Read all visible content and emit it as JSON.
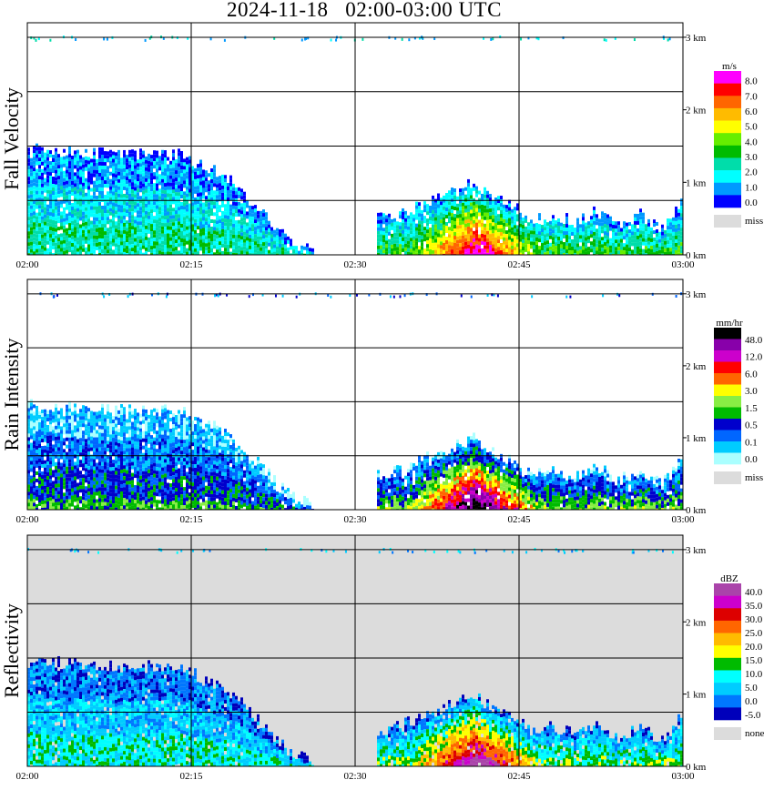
{
  "title": "2024-11-18   02:00-03:00 UTC",
  "colors": {
    "none": "#dcdcdc",
    "grid": "#000000"
  },
  "chart_data": [
    {
      "type": "heatmap",
      "panel": "fall_velocity",
      "ylabel": "Fall Velocity",
      "x_ticks": [
        "02:00",
        "02:15",
        "02:30",
        "02:45",
        "03:00"
      ],
      "y_ticks": [
        "0 km",
        "1 km",
        "2 km",
        "3 km"
      ],
      "ylim": [
        0,
        3.2
      ],
      "x_range_minutes": [
        0,
        60
      ],
      "background": "white",
      "colorbar": {
        "unit": "m/s",
        "labels": [
          "8.0",
          "7.0",
          "6.0",
          "5.0",
          "4.0",
          "3.0",
          "2.0",
          "1.0",
          "0.0"
        ],
        "colors": [
          "#ff00ff",
          "#ff0000",
          "#ff6600",
          "#ffbb00",
          "#ffff00",
          "#66ee00",
          "#00bb00",
          "#00ddaa",
          "#00ffff",
          "#0099ff",
          "#0000ff"
        ],
        "missing_label": "miss"
      },
      "data_description": "Echo top ~1.5 km from 02:00 to 02:15 descending to 0 by ~02:26; second echo 02:32-03:00 with peak top ~1.0 km near 02:40; sparse noise at ~3 km",
      "echoes": [
        {
          "t": [
            0,
            2,
            4,
            6,
            8,
            10,
            12,
            14,
            15,
            16,
            18,
            20,
            22,
            24,
            26
          ],
          "top": [
            1.45,
            1.45,
            1.42,
            1.4,
            1.38,
            1.38,
            1.38,
            1.38,
            1.3,
            1.2,
            1.1,
            0.8,
            0.5,
            0.2,
            0.05
          ]
        },
        {
          "t": [
            32,
            34,
            36,
            38,
            40,
            41,
            42,
            44,
            46,
            48,
            50,
            52,
            54,
            56,
            58,
            60
          ],
          "top": [
            0.5,
            0.55,
            0.7,
            0.8,
            0.95,
            1.0,
            0.85,
            0.7,
            0.5,
            0.55,
            0.45,
            0.6,
            0.4,
            0.55,
            0.35,
            0.75
          ]
        }
      ]
    },
    {
      "type": "heatmap",
      "panel": "rain_intensity",
      "ylabel": "Rain Intensity",
      "x_ticks": [
        "02:00",
        "02:15",
        "02:30",
        "02:45",
        "03:00"
      ],
      "y_ticks": [
        "0 km",
        "1 km",
        "2 km",
        "3 km"
      ],
      "ylim": [
        0,
        3.2
      ],
      "x_range_minutes": [
        0,
        60
      ],
      "background": "white",
      "colorbar": {
        "unit": "mm/hr",
        "labels": [
          "48.0",
          "12.0",
          "6.0",
          "3.0",
          "1.5",
          "0.5",
          "0.1",
          "0.0"
        ],
        "colors": [
          "#000000",
          "#8800aa",
          "#cc00cc",
          "#ff0000",
          "#ff6600",
          "#ffff00",
          "#88ee44",
          "#00bb00",
          "#0000cc",
          "#0066ff",
          "#00ccff",
          "#aaffff"
        ],
        "missing_label": "miss"
      },
      "echoes": [
        {
          "t": [
            0,
            2,
            4,
            6,
            8,
            10,
            12,
            14,
            15,
            16,
            18,
            20,
            22,
            24,
            26
          ],
          "top": [
            1.45,
            1.45,
            1.42,
            1.4,
            1.38,
            1.38,
            1.38,
            1.38,
            1.3,
            1.2,
            1.1,
            0.8,
            0.5,
            0.2,
            0.05
          ]
        },
        {
          "t": [
            32,
            34,
            36,
            38,
            40,
            41,
            42,
            44,
            46,
            48,
            50,
            52,
            54,
            56,
            58,
            60
          ],
          "top": [
            0.5,
            0.55,
            0.7,
            0.8,
            0.95,
            1.0,
            0.85,
            0.7,
            0.5,
            0.55,
            0.45,
            0.6,
            0.4,
            0.55,
            0.35,
            0.75
          ]
        }
      ]
    },
    {
      "type": "heatmap",
      "panel": "reflectivity",
      "ylabel": "Reflectivity",
      "x_ticks": [
        "02:00",
        "02:15",
        "02:30",
        "02:45",
        "03:00"
      ],
      "y_ticks": [
        "0 km",
        "1 km",
        "2 km",
        "3 km"
      ],
      "ylim": [
        0,
        3.2
      ],
      "x_range_minutes": [
        0,
        60
      ],
      "background": "none (grey)",
      "colorbar": {
        "unit": "dBZ",
        "labels": [
          "40.0",
          "35.0",
          "30.0",
          "25.0",
          "20.0",
          "15.0",
          "10.0",
          "5.0",
          "0.0",
          "-5.0"
        ],
        "colors": [
          "#aa44aa",
          "#cc00cc",
          "#dd0000",
          "#ff6600",
          "#ffbb00",
          "#ffff00",
          "#00bb00",
          "#00ffff",
          "#00ccff",
          "#0077ff",
          "#0000bb"
        ],
        "missing_label": "none"
      },
      "echoes": [
        {
          "t": [
            0,
            2,
            4,
            6,
            8,
            10,
            12,
            14,
            15,
            16,
            18,
            20,
            22,
            24,
            26
          ],
          "top": [
            1.45,
            1.45,
            1.42,
            1.4,
            1.38,
            1.38,
            1.38,
            1.38,
            1.3,
            1.2,
            1.1,
            0.8,
            0.5,
            0.2,
            0.05
          ]
        },
        {
          "t": [
            32,
            34,
            36,
            38,
            40,
            41,
            42,
            44,
            46,
            48,
            50,
            52,
            54,
            56,
            58,
            60
          ],
          "top": [
            0.5,
            0.55,
            0.7,
            0.8,
            0.95,
            1.0,
            0.85,
            0.7,
            0.5,
            0.55,
            0.45,
            0.6,
            0.4,
            0.55,
            0.35,
            0.75
          ]
        }
      ]
    }
  ]
}
